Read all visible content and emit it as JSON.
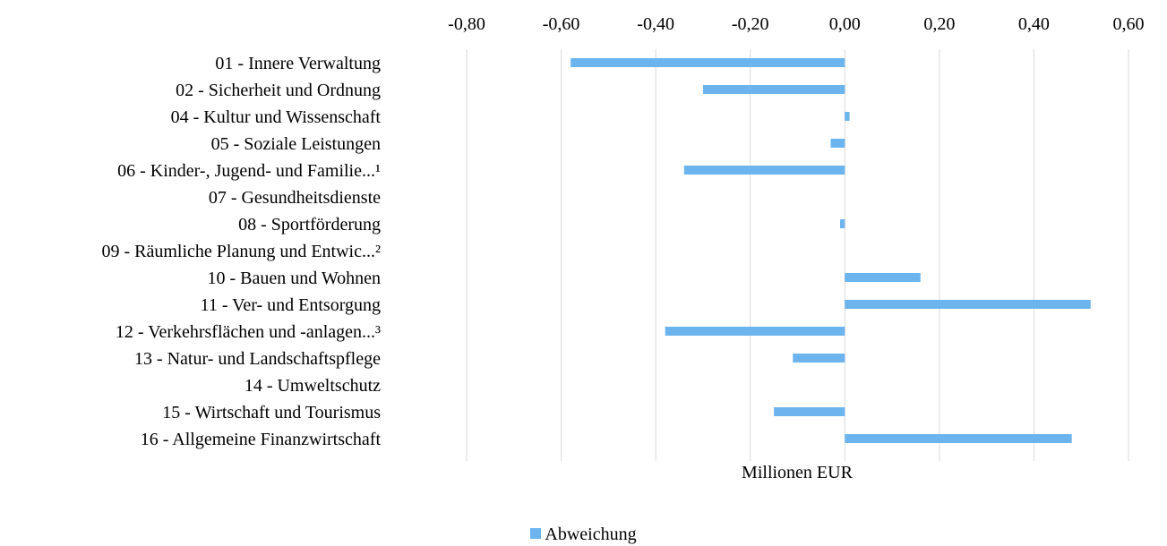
{
  "chart_data": {
    "type": "bar",
    "orientation": "horizontal",
    "categories": [
      "01 - Innere Verwaltung",
      "02 - Sicherheit und Ordnung",
      "04 - Kultur und Wissenschaft",
      "05 - Soziale Leistungen",
      "06 - Kinder-, Jugend- und Familie...¹",
      "07 - Gesundheitsdienste",
      "08 - Sportförderung",
      "09 - Räumliche Planung und Entwic...²",
      "10 - Bauen und Wohnen",
      "11 - Ver- und Entsorgung",
      "12 - Verkehrsflächen und -anlagen...³",
      "13 - Natur- und Landschaftspflege",
      "14 - Umweltschutz",
      "15 - Wirtschaft und Tourismus",
      "16 - Allgemeine Finanzwirtschaft"
    ],
    "series": [
      {
        "name": "Abweichung",
        "color": "#6cb4ee",
        "values": [
          -0.58,
          -0.3,
          0.01,
          -0.03,
          -0.34,
          0.0,
          -0.01,
          0.0,
          0.16,
          0.52,
          -0.38,
          -0.11,
          0.0,
          -0.15,
          0.48
        ]
      }
    ],
    "xlabel": "Millionen EUR",
    "xlim": [
      -0.8,
      0.6
    ],
    "xticks": [
      "-0,80",
      "-0,60",
      "-0,40",
      "-0,20",
      "0,00",
      "0,20",
      "0,40",
      "0,60"
    ],
    "x_axis_position": "top",
    "grid": "vertical",
    "legend": "bottom-center"
  }
}
